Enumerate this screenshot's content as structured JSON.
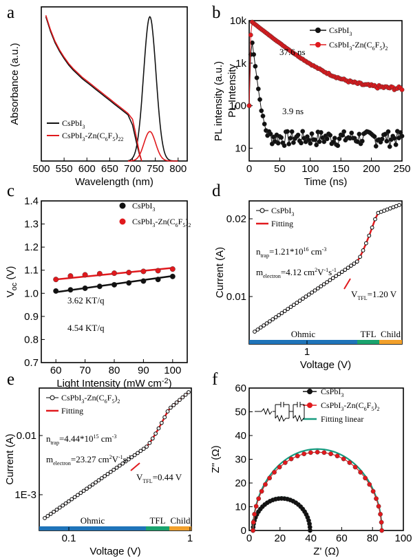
{
  "colors": {
    "black": "#111111",
    "red": "#e0191d",
    "teal": "#169b7f",
    "blue": "#1f74b9",
    "green": "#1aa36e",
    "orange": "#f2a02b"
  },
  "panel_labels": [
    "a",
    "b",
    "c",
    "d",
    "e",
    "f"
  ],
  "chart_data": [
    {
      "panel": "a",
      "type": "line",
      "xlabel": "Wavelength (nm)",
      "ylabel": "Absorbance (a.u.)",
      "xlim": [
        500,
        820
      ],
      "xticks": [
        500,
        550,
        600,
        650,
        700,
        750,
        800
      ],
      "legend_position": "bottom-left",
      "series": [
        {
          "name": "CsPbI3",
          "legend_main": "CsPbI",
          "legend_sub": "3",
          "color": "#111111",
          "absorbance_x": [
            510,
            520,
            530,
            540,
            550,
            560,
            570,
            580,
            590,
            600,
            610,
            620,
            630,
            640,
            650,
            660,
            670,
            680,
            690,
            700,
            705,
            710,
            715,
            720
          ],
          "absorbance_y": [
            1.0,
            0.9,
            0.82,
            0.76,
            0.71,
            0.665,
            0.63,
            0.6,
            0.57,
            0.545,
            0.52,
            0.495,
            0.47,
            0.445,
            0.42,
            0.395,
            0.37,
            0.345,
            0.32,
            0.25,
            0.18,
            0.11,
            0.05,
            0.0
          ],
          "pl_peak_nm": 738,
          "pl_peak_height": 0.98,
          "pl_fwhm_nm": 32
        },
        {
          "name": "CsPbI3-Zn(C6F5)22",
          "legend_main": "CsPbI",
          "legend_sub": "3",
          "legend_tail": "-Zn(C",
          "legend_sub2": "6",
          "legend_mid": "F",
          "legend_sub3": "5",
          "legend_end": ")",
          "legend_sub4": "22",
          "color": "#e0191d",
          "absorbance_x": [
            510,
            520,
            530,
            540,
            550,
            560,
            570,
            580,
            590,
            600,
            610,
            620,
            630,
            640,
            650,
            660,
            670,
            680,
            690,
            700,
            705,
            710,
            715,
            720
          ],
          "absorbance_y": [
            1.01,
            0.91,
            0.83,
            0.77,
            0.72,
            0.675,
            0.64,
            0.61,
            0.58,
            0.555,
            0.53,
            0.505,
            0.48,
            0.455,
            0.43,
            0.405,
            0.38,
            0.355,
            0.33,
            0.29,
            0.22,
            0.14,
            0.06,
            0.0
          ],
          "pl_peak_nm": 738,
          "pl_peak_height": 0.2,
          "pl_fwhm_nm": 30
        }
      ]
    },
    {
      "panel": "b",
      "type": "scatter",
      "xlabel": "Time (ns)",
      "ylabel": "PL intensity (a.u.)",
      "ylabel2": "PL Intensity",
      "xlim": [
        0,
        250
      ],
      "ylim": [
        5,
        10000
      ],
      "yscale": "log",
      "xticks": [
        0,
        50,
        100,
        150,
        200,
        250
      ],
      "yticks": [
        "10",
        "100",
        "1k",
        "10k"
      ],
      "legend_position": "top-right",
      "series": [
        {
          "name": "CsPbI3",
          "legend_main": "CsPbI",
          "legend_sub": "3",
          "color": "#111111",
          "amplitude": 3000,
          "tau_ns": 3.9,
          "tail_level": 18,
          "annotation": "3.9 ns"
        },
        {
          "name": "CsPbI3-Zn(C6F5)2",
          "legend_main": "CsPbI",
          "legend_sub": "3",
          "legend_tail": "-Zn(C",
          "legend_sub2": "6",
          "legend_mid": "F",
          "legend_sub3": "5",
          "legend_end": ")",
          "legend_sub4": "2",
          "color": "#e0191d",
          "amplitude": 9000,
          "tau_ns": 37.6,
          "tail_level": 240,
          "annotation": "37.6 ns"
        }
      ]
    },
    {
      "panel": "c",
      "type": "scatter",
      "xlabel": "Light Intensity (mW cm",
      "xlabel_sup": "-2",
      "xlabel_end": ")",
      "ylabel_main": "V",
      "ylabel_sub": "oc",
      "ylabel_end": " (V)",
      "xlim": [
        55,
        105
      ],
      "ylim": [
        0.7,
        1.4
      ],
      "xticks": [
        60,
        70,
        80,
        90,
        100
      ],
      "yticks": [
        "0.7",
        "0.8",
        "0.9",
        "1.0",
        "1.1",
        "1.2",
        "1.3",
        "1.4"
      ],
      "legend_position": "top-right",
      "x": [
        60,
        65,
        70,
        75,
        80,
        85,
        90,
        95,
        100
      ],
      "series": [
        {
          "name": "CsPbI3",
          "legend_main": "CsPbI",
          "legend_sub": "3",
          "color": "#111111",
          "values": [
            1.01,
            1.015,
            1.022,
            1.03,
            1.037,
            1.045,
            1.053,
            1.06,
            1.073
          ],
          "fit": [
            1.005,
            1.075
          ],
          "annotation": "4.54 KT/q"
        },
        {
          "name": "CsPbI3-Zn(C6F5)2",
          "legend_main": "CsPbI",
          "legend_sub": "3",
          "legend_tail": "-Zn(C",
          "legend_sub2": "6",
          "legend_mid": "F",
          "legend_sub3": "5",
          "legend_end": ")",
          "legend_sub4": "2",
          "color": "#e0191d",
          "values": [
            1.06,
            1.075,
            1.08,
            1.085,
            1.087,
            1.09,
            1.095,
            1.098,
            1.105
          ],
          "fit": [
            1.06,
            1.11
          ],
          "annotation": "3.62 KT/q"
        }
      ]
    },
    {
      "panel": "d",
      "type": "line",
      "xlabel": "Voltage (V)",
      "ylabel": "Current (A)",
      "xscale": "log",
      "yscale": "log",
      "xticks": [
        "1"
      ],
      "yticks": [
        "0.01",
        "0.02"
      ],
      "legend_position": "top-left",
      "regions": [
        "Ohmic",
        "TFL",
        "Child"
      ],
      "series": [
        {
          "name": "CsPbI3",
          "legend_main": "CsPbI",
          "legend_sub": "3",
          "color": "#111111"
        },
        {
          "name": "Fitting",
          "color": "#e0191d"
        }
      ],
      "annotations": {
        "ntrap_main": "n",
        "ntrap_sub": "trap",
        "ntrap_val": "=1.21*10",
        "ntrap_sup": "16",
        "ntrap_unit": " cm",
        "ntrap_unit_sup": "-3",
        "m_main": "m",
        "m_sub": "electron",
        "m_val": "=4.12 cm",
        "m_sup1": "2",
        "m_mid": "V",
        "m_sup2": "-1",
        "m_s": "s",
        "m_sup3": "-1",
        "vtfl_main": "V",
        "vtfl_sub": "TFL",
        "vtfl_val": "=1.20 V"
      }
    },
    {
      "panel": "e",
      "type": "line",
      "xlabel": "Voltage (V)",
      "ylabel": "Current (A)",
      "xscale": "log",
      "yscale": "log",
      "xticks": [
        "0.1",
        "1"
      ],
      "yticks": [
        "1E-3",
        "0.01"
      ],
      "legend_position": "top-left",
      "regions": [
        "Ohmic",
        "TFL",
        "Child"
      ],
      "series": [
        {
          "name": "CsPbI3-Zn(C6F5)2",
          "legend_main": "CsPbI",
          "legend_sub": "3",
          "legend_tail": "-Zn(C",
          "legend_sub2": "6",
          "legend_mid": "F",
          "legend_sub3": "5",
          "legend_end": ")",
          "legend_sub4": "2",
          "color": "#111111"
        },
        {
          "name": "Fitting",
          "color": "#e0191d"
        }
      ],
      "annotations": {
        "ntrap_main": "n",
        "ntrap_sub": "trap",
        "ntrap_val": "=4.44*10",
        "ntrap_sup": "15",
        "ntrap_unit": " cm",
        "ntrap_unit_sup": "-3",
        "m_main": "m",
        "m_sub": "electron",
        "m_val": "=23.27 cm",
        "m_sup1": "2",
        "m_mid": "V",
        "m_sup2": "-1",
        "m_s": "s",
        "m_sup3": "-1",
        "vtfl_main": "V",
        "vtfl_sub": "TFL",
        "vtfl_val": "=0.44 V"
      }
    },
    {
      "panel": "f",
      "type": "scatter",
      "xlabel": "Z' (Ω)",
      "ylabel": "Z'' (Ω)",
      "xlim": [
        0,
        100
      ],
      "ylim": [
        0,
        60
      ],
      "xticks": [
        0,
        20,
        40,
        60,
        80,
        100
      ],
      "yticks": [
        0,
        10,
        20,
        30,
        40,
        50,
        60
      ],
      "legend_position": "top-right",
      "series": [
        {
          "name": "CsPbI3",
          "legend_main": "CsPbI",
          "legend_sub": "3",
          "color": "#111111",
          "arc_start": 2.5,
          "arc_end": 39.5,
          "arc_peak": 13.5
        },
        {
          "name": "CsPbI3-Zn(C6F5)2",
          "legend_main": "CsPbI",
          "legend_sub": "3",
          "legend_tail": "-Zn(C",
          "legend_sub2": "6",
          "legend_mid": "F",
          "legend_sub3": "5",
          "legend_end": ")",
          "legend_sub4": "2",
          "color": "#e0191d",
          "arc_start": 2.5,
          "arc_end": 86,
          "arc_peak": 33
        },
        {
          "name": "Fitting linear",
          "color": "#169b7f"
        }
      ]
    }
  ]
}
